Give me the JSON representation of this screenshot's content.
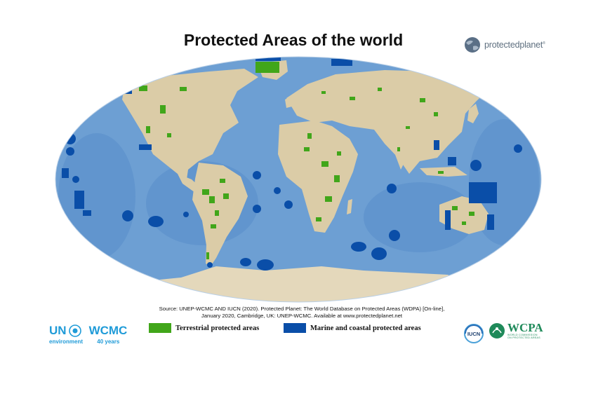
{
  "title": "Protected Areas of the world",
  "brand": {
    "logo_text": "protectedplanet",
    "trademark": "®"
  },
  "source": {
    "line1": "Source: UNEP-WCMC AND IUCN (2020). Protected Planet: The World Database on Protected Areas (WDPA) [On-line],",
    "line2": "January 2020, Cambridge, UK: UNEP-WCMC. Available at www.protectedplanet.net"
  },
  "legend": {
    "terrestrial": {
      "label": "Terrestrial protected areas",
      "color": "#41a61a"
    },
    "marine": {
      "label": "Marine and coastal protected areas",
      "color": "#0a4ea8"
    }
  },
  "logos": {
    "un_left": "UN",
    "un_right": "WCMC",
    "un_sub_left": "environment",
    "un_sub_right": "40 years",
    "iucn": "IUCN",
    "wcpa": "WCPA",
    "wcpa_sub1": "WORLD COMMISSION",
    "wcpa_sub2": "ON PROTECTED AREAS"
  },
  "map_colors": {
    "ocean": "#6d9fd3",
    "ocean_deep": "#4f86c4",
    "land": "#dbcca7",
    "ice": "#e4d8bb"
  }
}
